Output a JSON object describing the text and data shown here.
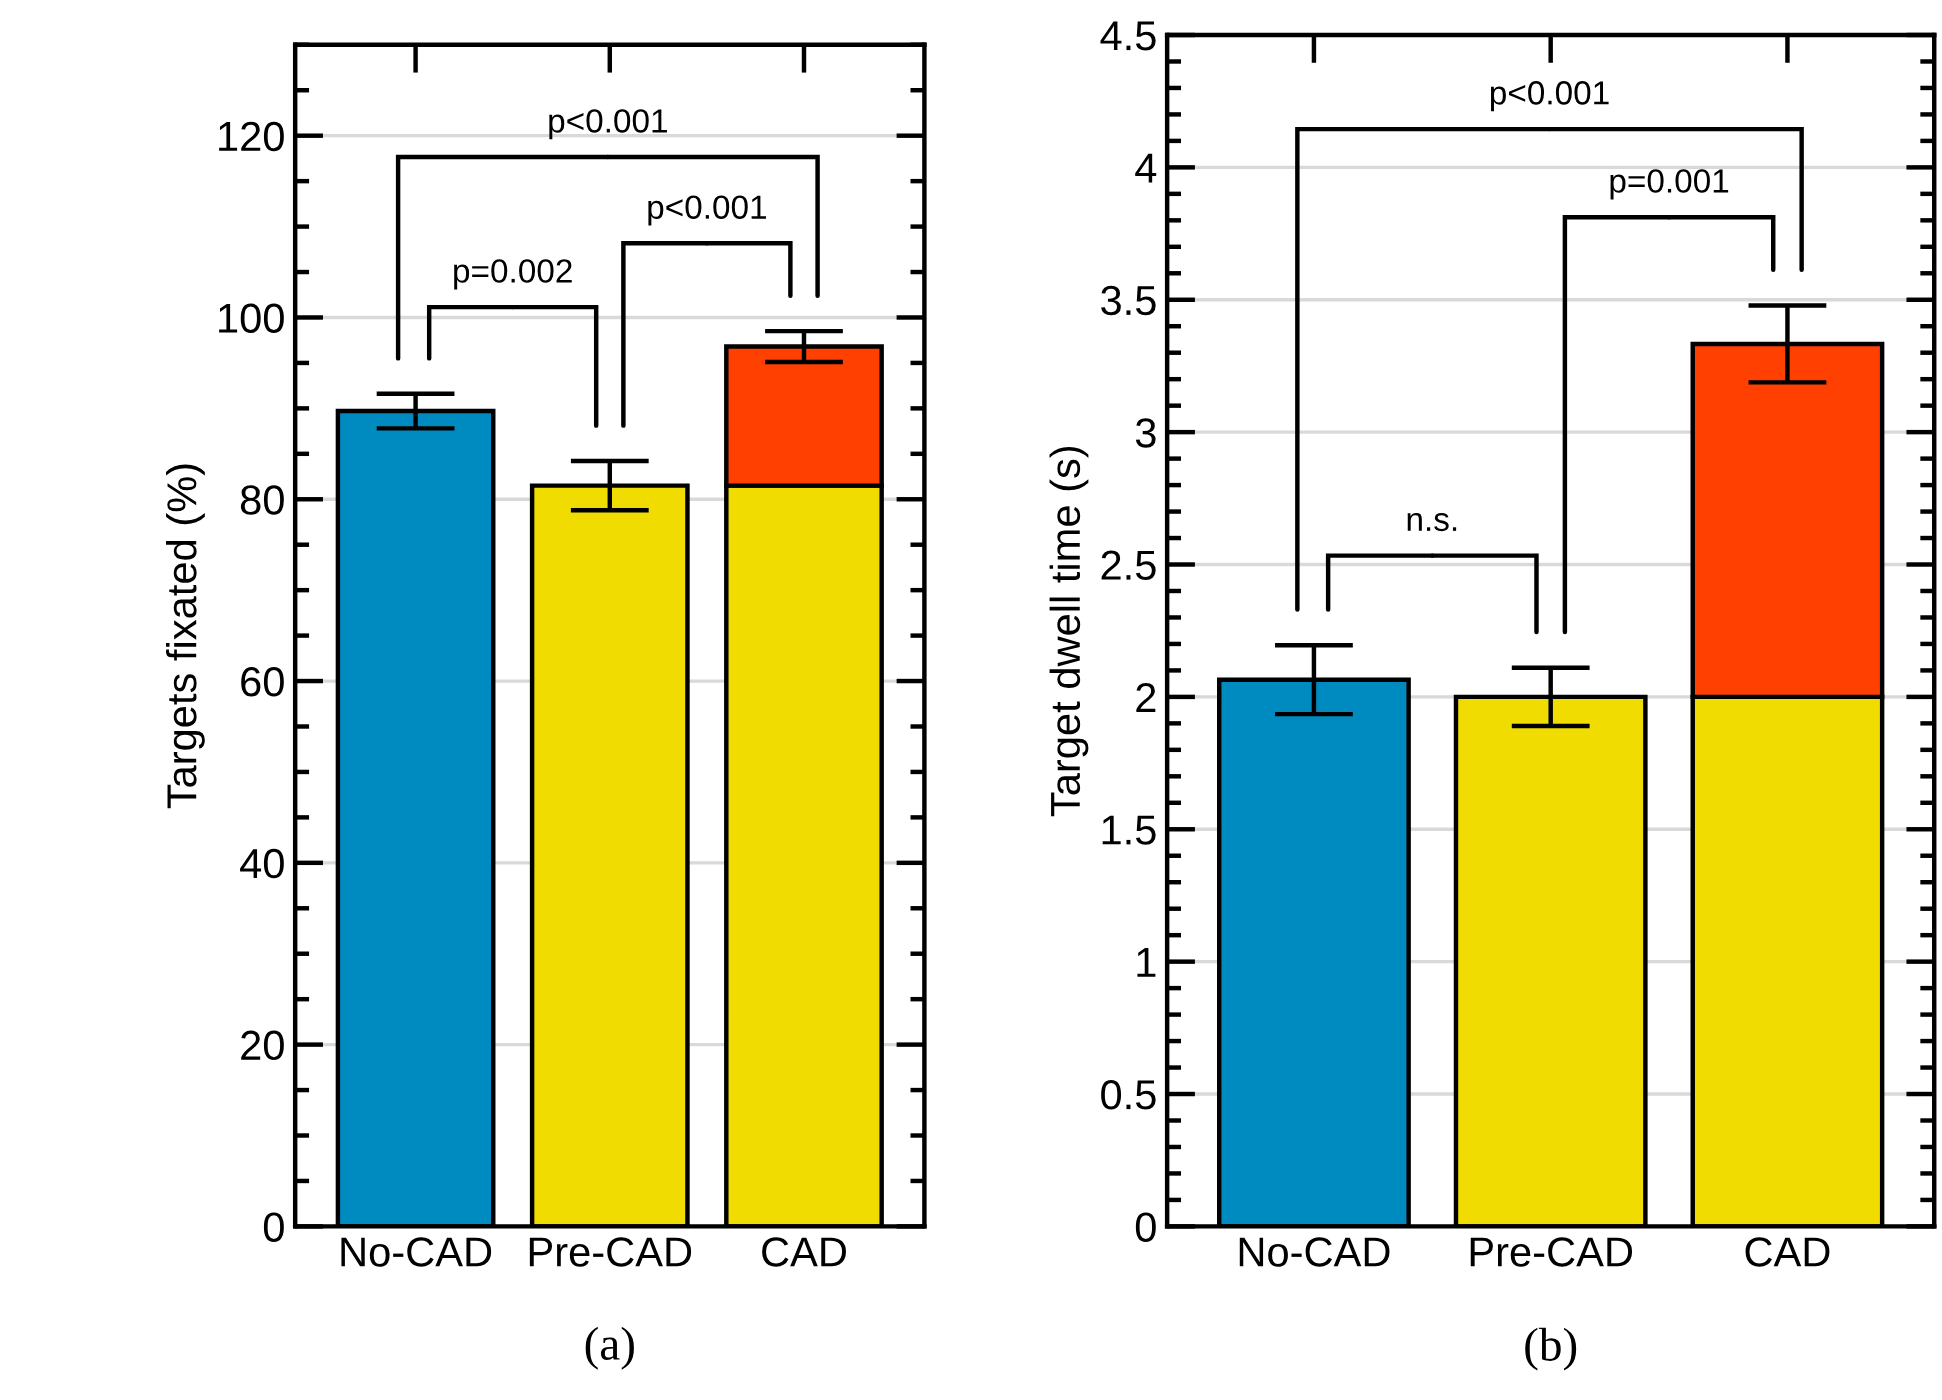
{
  "chart_data": [
    {
      "type": "bar",
      "stacked": true,
      "ylabel": "Targets fixated (%)",
      "categories": [
        "No-CAD",
        "Pre-CAD",
        "CAD"
      ],
      "ylim": [
        0,
        130
      ],
      "yticks": [
        0,
        20,
        40,
        60,
        80,
        100,
        120
      ],
      "grid": "y",
      "series": [
        {
          "colors": [
            "#008bc0",
            "#f0dc00",
            "#f0dc00"
          ],
          "values": [
            89.7,
            81.5,
            81.5
          ],
          "errors": [
            1.9,
            2.7,
            null
          ]
        },
        {
          "color": "#ff4000",
          "values": [
            null,
            null,
            15.3
          ],
          "errors": [
            null,
            null,
            1.7
          ]
        }
      ],
      "annotations": [
        "p<0.001",
        "p=0.002",
        "p<0.001",
        "(a)"
      ]
    },
    {
      "type": "bar",
      "stacked": true,
      "ylabel": "Target dwell time (s)",
      "categories": [
        "No-CAD",
        "Pre-CAD",
        "CAD"
      ],
      "ylim": [
        0,
        4.5
      ],
      "yticks": [
        0,
        0.5,
        1,
        1.5,
        2,
        2.5,
        3,
        3.5,
        4,
        4.5
      ],
      "grid": "y",
      "series": [
        {
          "colors": [
            "#008bc0",
            "#f0dc00",
            "#f0dc00"
          ],
          "values": [
            2.065,
            2.0,
            2.0
          ],
          "errors": [
            0.13,
            0.11,
            null
          ]
        },
        {
          "color": "#ff4000",
          "values": [
            null,
            null,
            1.333
          ],
          "errors": [
            null,
            null,
            0.145
          ]
        }
      ],
      "annotations": [
        "p<0.001",
        "p=0.001",
        "n.s.",
        "(b)"
      ]
    }
  ]
}
